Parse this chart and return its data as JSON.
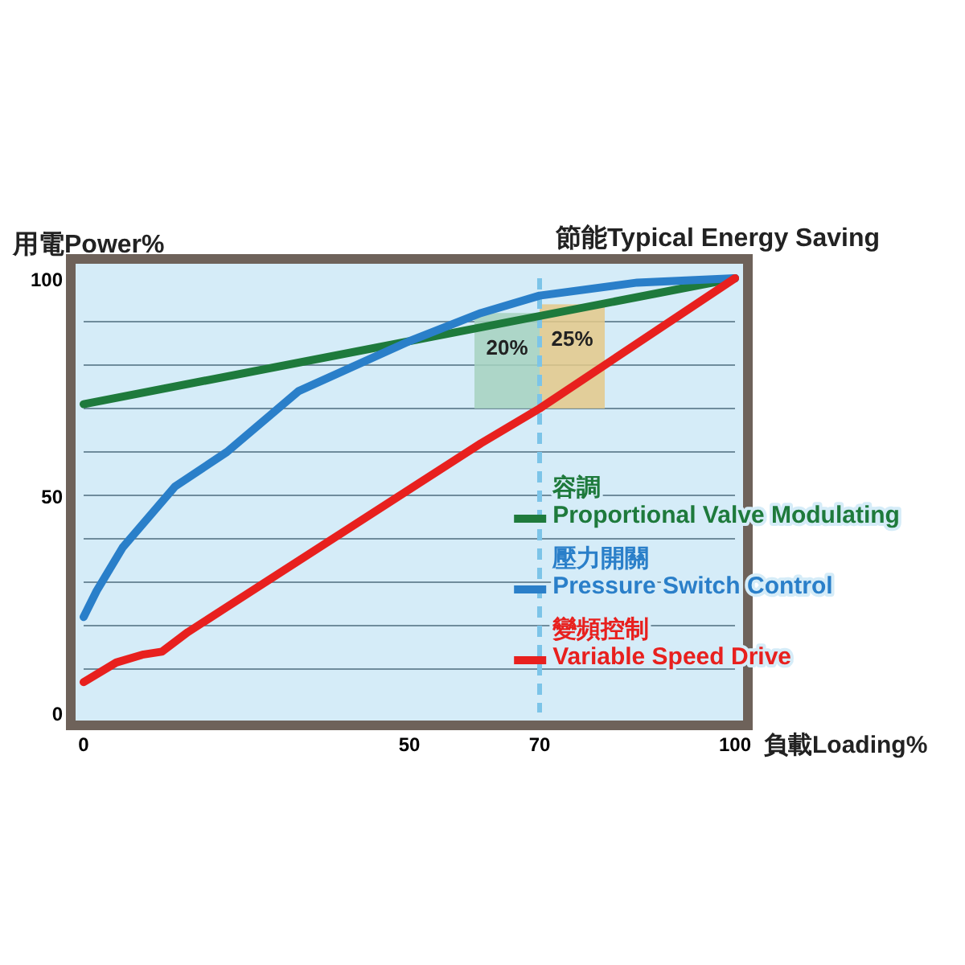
{
  "chart_data": {
    "type": "line",
    "title": "節能Typical Energy Saving",
    "xlabel": "負載Loading%",
    "ylabel": "用電Power%",
    "xlim": [
      0,
      100
    ],
    "ylim": [
      0,
      100
    ],
    "xticks": [
      0,
      50,
      70,
      100
    ],
    "yticks": [
      0,
      {
        "value": 10,
        "label": null
      },
      {
        "value": 20,
        "label": null
      },
      {
        "value": 30,
        "label": null
      },
      {
        "value": 40,
        "label": null
      },
      50,
      {
        "value": 60,
        "label": null
      },
      {
        "value": 70,
        "label": null
      },
      {
        "value": 80,
        "label": null
      },
      {
        "value": 90,
        "label": null
      },
      100
    ],
    "grid": "y",
    "legend": "right",
    "line_style": "solid",
    "marker": "none",
    "series": [
      {
        "type": "bar",
        "x": [
          65,
          75
        ],
        "base": [
          70,
          70
        ],
        "values": [
          22,
          24
        ],
        "colors": [
          "#a6d2bf",
          "#e4c98a"
        ]
      },
      {
        "name": "容調\nProportional Valve Modulating",
        "color": "#1e7a3c",
        "x": [
          0,
          100
        ],
        "values": [
          71,
          100
        ]
      },
      {
        "name": "壓力開關\nPressure Switch Control",
        "color": "#2a7fc9",
        "x": [
          0,
          2,
          6,
          14,
          22,
          33,
          50,
          61,
          70,
          85,
          100
        ],
        "values": [
          22,
          28,
          38,
          52,
          60,
          74,
          85.5,
          92,
          96,
          99,
          100
        ]
      },
      {
        "name": "變頻控制\nVariable Speed Drive",
        "color": "#e8201e",
        "x": [
          0,
          5,
          9,
          12,
          16,
          61,
          70,
          100
        ],
        "values": [
          7,
          11.5,
          13.3,
          14,
          18.5,
          62,
          70,
          100
        ]
      }
    ],
    "ref_lines": [
      {
        "axis": "x",
        "value": 70,
        "line_style": "dashed",
        "color": "#7cc4e8"
      }
    ],
    "annotations": [
      {
        "text": "20%",
        "x": 65,
        "y": 92
      },
      {
        "text": "25%",
        "x": 75,
        "y": 94
      }
    ]
  }
}
